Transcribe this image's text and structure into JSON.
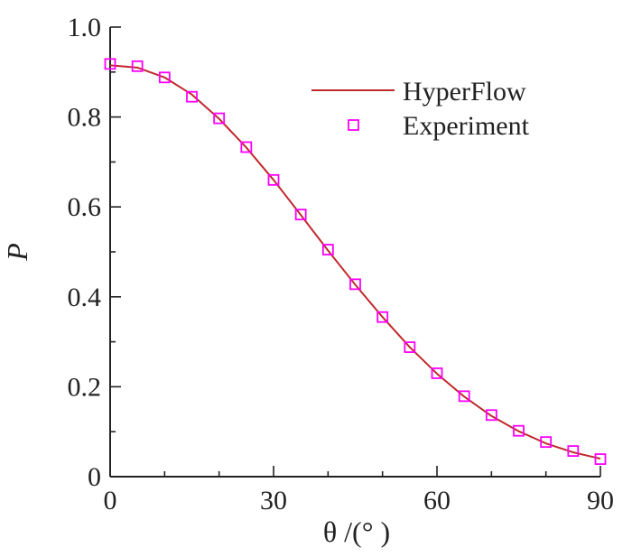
{
  "chart_data": {
    "type": "line",
    "xlabel": "θ /(° )",
    "ylabel": "P",
    "xlim": [
      0,
      90
    ],
    "ylim": [
      0,
      1.0
    ],
    "xticks": [
      0,
      30,
      60,
      90
    ],
    "xtick_labels": [
      "0",
      "30",
      "60",
      "90"
    ],
    "yticks": [
      0,
      0.2,
      0.4,
      0.6,
      0.8,
      1.0
    ],
    "ytick_labels": [
      "0",
      "0.2",
      "0.4",
      "0.6",
      "0.8",
      "1.0"
    ],
    "grid": false,
    "legend_position": "top-right",
    "series": [
      {
        "name": "HyperFlow",
        "kind": "line",
        "color": "#c0282d",
        "x": [
          0,
          5,
          10,
          15,
          20,
          25,
          30,
          35,
          40,
          45,
          50,
          55,
          60,
          65,
          70,
          75,
          80,
          85,
          90
        ],
        "y": [
          0.915,
          0.91,
          0.888,
          0.85,
          0.796,
          0.732,
          0.66,
          0.582,
          0.503,
          0.427,
          0.355,
          0.288,
          0.229,
          0.178,
          0.135,
          0.101,
          0.074,
          0.054,
          0.04
        ]
      },
      {
        "name": "Experiment",
        "kind": "marker",
        "marker": "square",
        "color": "#ff00ff",
        "x": [
          0,
          5,
          10,
          15,
          20,
          25,
          30,
          35,
          40,
          45,
          50,
          55,
          60,
          65,
          70,
          75,
          80,
          85,
          90
        ],
        "y": [
          0.918,
          0.913,
          0.888,
          0.845,
          0.797,
          0.733,
          0.66,
          0.583,
          0.505,
          0.428,
          0.355,
          0.288,
          0.23,
          0.179,
          0.137,
          0.102,
          0.077,
          0.057,
          0.039
        ]
      }
    ]
  }
}
